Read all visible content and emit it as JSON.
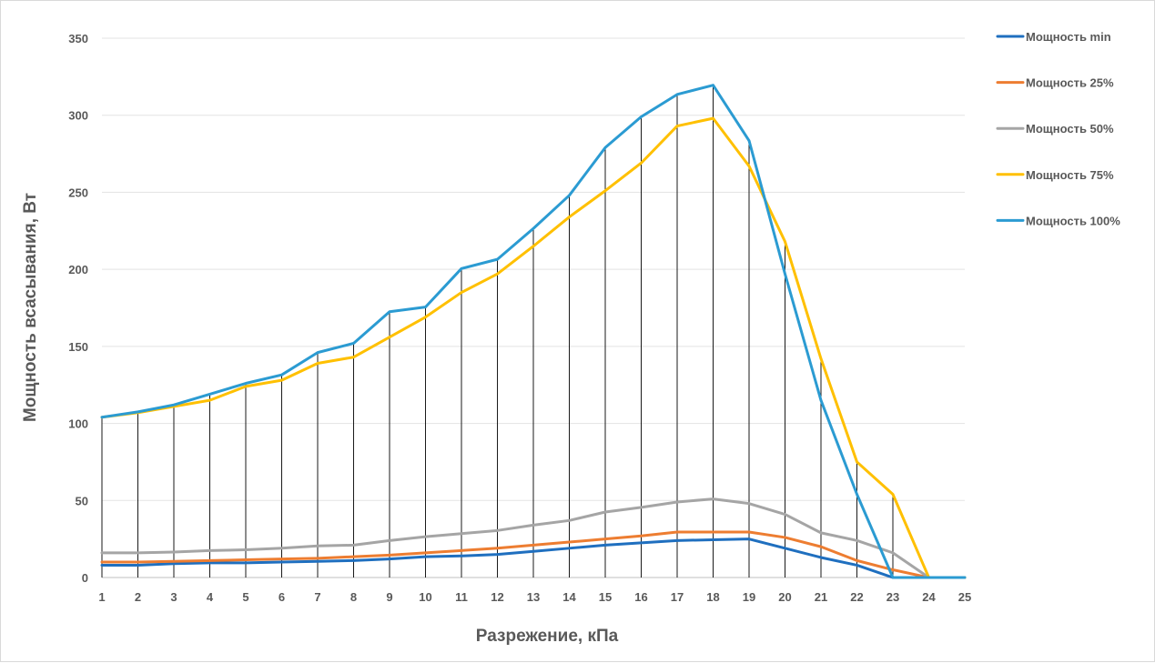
{
  "chart_data": {
    "type": "line",
    "title": "",
    "xlabel": "Разрежение, кПа",
    "ylabel": "Мощность всасывания, Вт",
    "categories": [
      "1",
      "2",
      "3",
      "4",
      "5",
      "6",
      "7",
      "8",
      "9",
      "10",
      "11",
      "12",
      "13",
      "14",
      "15",
      "16",
      "17",
      "18",
      "19",
      "20",
      "21",
      "22",
      "23",
      "24",
      "25"
    ],
    "ylim": [
      0,
      350
    ],
    "yticks": [
      "0",
      "50",
      "100",
      "150",
      "200",
      "250",
      "300",
      "350"
    ],
    "grid": "horizontal",
    "legend": "right",
    "drop_lines": true,
    "series": [
      {
        "name": "Мощность min",
        "color": "#1f6fbf",
        "values": [
          8,
          8,
          9,
          9.5,
          9.5,
          10,
          10.5,
          11,
          12,
          13.5,
          14,
          15,
          17,
          19,
          21,
          22.5,
          24,
          24.5,
          25,
          19,
          13,
          8,
          0,
          0,
          0
        ]
      },
      {
        "name": "Мощность 25%",
        "color": "#ed7d31",
        "values": [
          10,
          10,
          10.5,
          11,
          11.5,
          12,
          12.5,
          13.5,
          14.5,
          16,
          17.5,
          19,
          21,
          23,
          25,
          27,
          29.5,
          29.5,
          29.5,
          26,
          20,
          11,
          5,
          0,
          0
        ]
      },
      {
        "name": "Мощность 50%",
        "color": "#a5a5a5",
        "values": [
          16,
          16,
          16.5,
          17.5,
          18,
          19,
          20.5,
          21,
          24,
          26.5,
          28.5,
          30.5,
          34,
          37,
          42.5,
          45.5,
          49,
          51,
          48,
          41,
          29,
          24,
          16,
          0,
          0
        ]
      },
      {
        "name": "Мощность 75%",
        "color": "#ffc000",
        "values": [
          104,
          107,
          111,
          115,
          124,
          128,
          139,
          143,
          156,
          169,
          185,
          197,
          215,
          234,
          251,
          269,
          293,
          298,
          267,
          218,
          142,
          75,
          54,
          0,
          0
        ]
      },
      {
        "name": "Мощность 100%",
        "color": "#2b9bd2",
        "values": [
          104,
          107.5,
          112,
          119,
          126,
          131.5,
          146,
          152,
          172.5,
          175.5,
          200.5,
          206.5,
          226.5,
          248,
          279,
          299,
          313.5,
          319.5,
          283.5,
          197,
          115,
          54,
          0,
          0,
          0
        ]
      }
    ]
  }
}
